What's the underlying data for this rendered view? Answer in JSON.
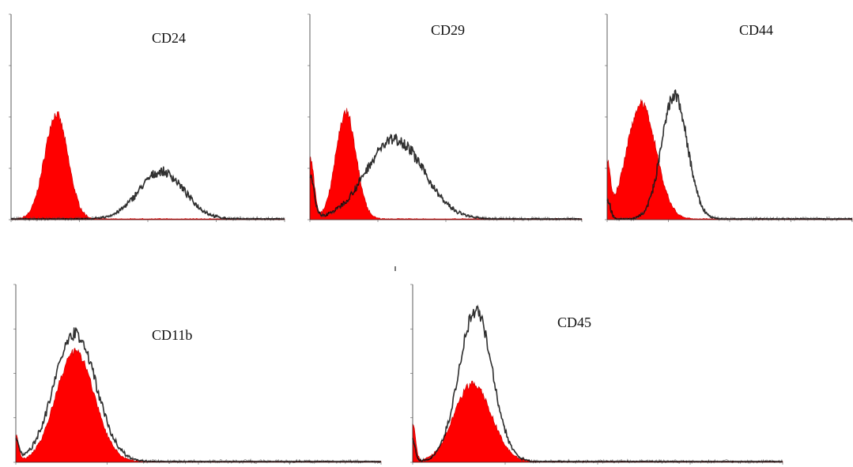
{
  "colors": {
    "control_fill": "#ff0000",
    "control_stroke": "#cc0000",
    "marker": "#000000",
    "axis": "#333333"
  },
  "chart_data": [
    {
      "type": "area",
      "title": "CD24",
      "xscale": "log",
      "xlim": [
        0,
        4
      ],
      "ylim": [
        0,
        1
      ],
      "grid": false,
      "series": [
        {
          "role": "isotype-control",
          "peaks": [
            {
              "center": 0.66,
              "width": 0.17,
              "height": 0.51
            }
          ]
        },
        {
          "role": "marker",
          "peaks": [
            {
              "center": 2.2,
              "width": 0.33,
              "height": 0.23
            }
          ]
        }
      ]
    },
    {
      "type": "area",
      "title": "CD29",
      "xscale": "log",
      "xlim": [
        0,
        4
      ],
      "ylim": [
        0,
        1
      ],
      "grid": false,
      "series": [
        {
          "role": "isotype-control",
          "peaks": [
            {
              "center": 0.0,
              "width": 0.06,
              "height": 0.3
            },
            {
              "center": 0.53,
              "width": 0.15,
              "height": 0.52
            }
          ]
        },
        {
          "role": "marker",
          "peaks": [
            {
              "center": 0.0,
              "width": 0.06,
              "height": 0.22
            },
            {
              "center": 1.25,
              "width": 0.42,
              "height": 0.39
            }
          ]
        }
      ]
    },
    {
      "type": "area",
      "title": "CD44",
      "xscale": "log",
      "xlim": [
        0,
        4
      ],
      "ylim": [
        0,
        1
      ],
      "grid": false,
      "series": [
        {
          "role": "isotype-control",
          "peaks": [
            {
              "center": 0.0,
              "width": 0.05,
              "height": 0.25
            },
            {
              "center": 0.56,
              "width": 0.24,
              "height": 0.56
            }
          ]
        },
        {
          "role": "marker",
          "peaks": [
            {
              "center": 0.0,
              "width": 0.05,
              "height": 0.1
            },
            {
              "center": 1.1,
              "width": 0.21,
              "height": 0.6
            }
          ]
        }
      ]
    },
    {
      "type": "area",
      "title": "CD11b",
      "xscale": "log",
      "xlim": [
        0,
        4
      ],
      "ylim": [
        0,
        1
      ],
      "grid": false,
      "series": [
        {
          "role": "isotype-control",
          "peaks": [
            {
              "center": 0.0,
              "width": 0.03,
              "height": 0.15
            },
            {
              "center": 0.65,
              "width": 0.21,
              "height": 0.62
            }
          ]
        },
        {
          "role": "marker",
          "peaks": [
            {
              "center": 0.0,
              "width": 0.03,
              "height": 0.12
            },
            {
              "center": 0.65,
              "width": 0.23,
              "height": 0.72
            }
          ]
        }
      ]
    },
    {
      "type": "area",
      "title": "CD45",
      "xscale": "log",
      "xlim": [
        0,
        4
      ],
      "ylim": [
        0,
        1
      ],
      "grid": false,
      "series": [
        {
          "role": "isotype-control",
          "peaks": [
            {
              "center": 0.0,
              "width": 0.03,
              "height": 0.22
            },
            {
              "center": 0.65,
              "width": 0.2,
              "height": 0.44
            }
          ]
        },
        {
          "role": "marker",
          "peaks": [
            {
              "center": 0.0,
              "width": 0.03,
              "height": 0.12
            },
            {
              "center": 0.68,
              "width": 0.18,
              "height": 0.85
            }
          ]
        }
      ]
    }
  ]
}
